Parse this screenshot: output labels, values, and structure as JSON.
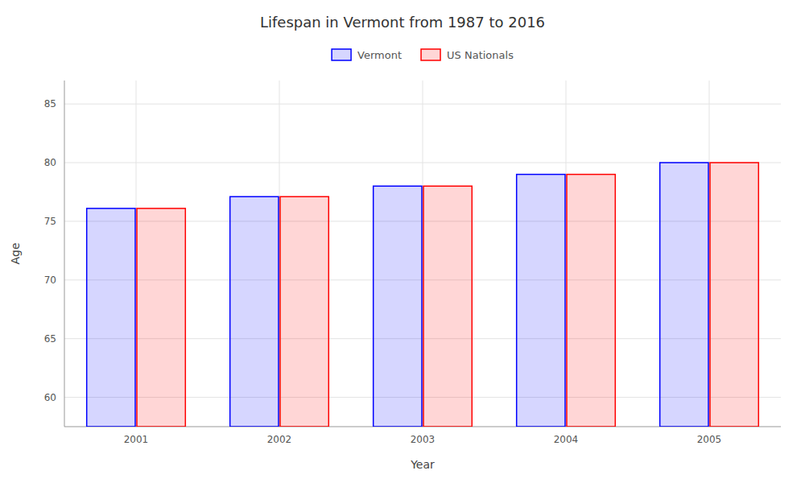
{
  "chart_data": {
    "type": "bar",
    "title": "Lifespan in Vermont from 1987 to 2016",
    "xlabel": "Year",
    "ylabel": "Age",
    "categories": [
      "2001",
      "2002",
      "2003",
      "2004",
      "2005"
    ],
    "series": [
      {
        "name": "Vermont",
        "color": "#0000ff",
        "values": [
          76.1,
          77.1,
          78.0,
          79.0,
          80.0
        ]
      },
      {
        "name": "US Nationals",
        "color": "#ff0000",
        "values": [
          76.1,
          77.1,
          78.0,
          79.0,
          80.0
        ]
      }
    ],
    "ylim": [
      57.5,
      87
    ],
    "yticks": [
      60,
      65,
      70,
      75,
      80,
      85
    ],
    "grid": true,
    "legend": "top"
  }
}
